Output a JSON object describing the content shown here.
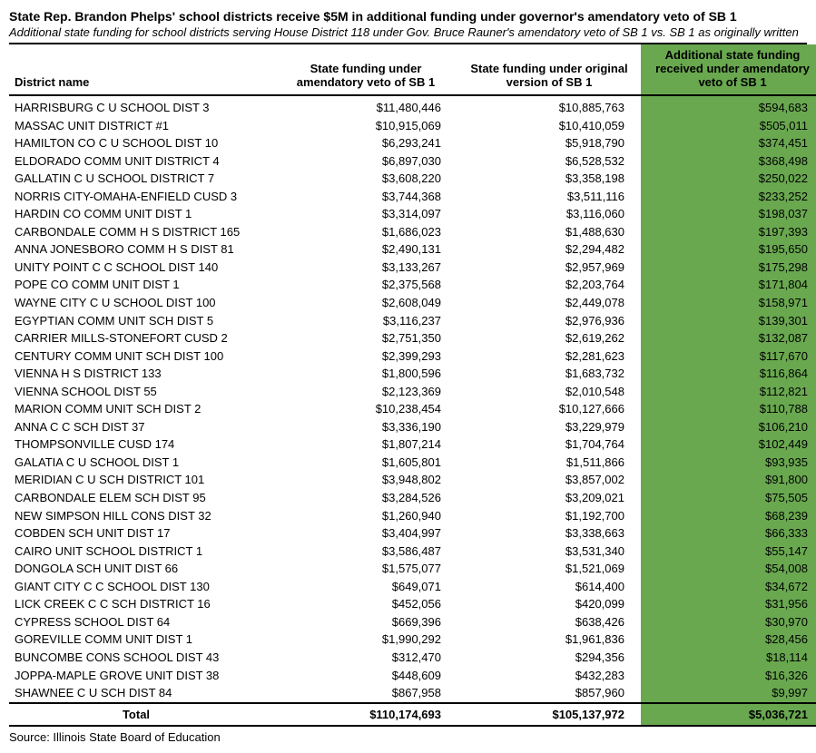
{
  "title": "State Rep. Brandon Phelps' school districts receive $5M in additional funding under governor's amendatory veto of SB 1",
  "subtitle": "Additional state funding for school districts serving House District 118 under Gov. Bruce Rauner's amendatory veto of SB 1 vs. SB 1 as originally written",
  "columns": {
    "c0": "District name",
    "c1": "State funding under amendatory veto of SB 1",
    "c2": "State funding under original version of SB 1",
    "c3": "Additional state funding received under amendatory veto of SB 1"
  },
  "rows": [
    {
      "d": "HARRISBURG C U SCHOOL DIST 3",
      "a": "$11,480,446",
      "b": "$10,885,763",
      "c": "$594,683"
    },
    {
      "d": "MASSAC UNIT DISTRICT #1",
      "a": "$10,915,069",
      "b": "$10,410,059",
      "c": "$505,011"
    },
    {
      "d": "HAMILTON CO C U SCHOOL DIST 10",
      "a": "$6,293,241",
      "b": "$5,918,790",
      "c": "$374,451"
    },
    {
      "d": "ELDORADO COMM UNIT DISTRICT 4",
      "a": "$6,897,030",
      "b": "$6,528,532",
      "c": "$368,498"
    },
    {
      "d": "GALLATIN C U SCHOOL DISTRICT 7",
      "a": "$3,608,220",
      "b": "$3,358,198",
      "c": "$250,022"
    },
    {
      "d": "NORRIS CITY-OMAHA-ENFIELD CUSD 3",
      "a": "$3,744,368",
      "b": "$3,511,116",
      "c": "$233,252"
    },
    {
      "d": "HARDIN CO COMM UNIT DIST 1",
      "a": "$3,314,097",
      "b": "$3,116,060",
      "c": "$198,037"
    },
    {
      "d": "CARBONDALE COMM H S DISTRICT 165",
      "a": "$1,686,023",
      "b": "$1,488,630",
      "c": "$197,393"
    },
    {
      "d": "ANNA JONESBORO COMM H S DIST 81",
      "a": "$2,490,131",
      "b": "$2,294,482",
      "c": "$195,650"
    },
    {
      "d": "UNITY POINT C C SCHOOL DIST 140",
      "a": "$3,133,267",
      "b": "$2,957,969",
      "c": "$175,298"
    },
    {
      "d": "POPE CO COMM UNIT DIST 1",
      "a": "$2,375,568",
      "b": "$2,203,764",
      "c": "$171,804"
    },
    {
      "d": "WAYNE CITY C U SCHOOL DIST 100",
      "a": "$2,608,049",
      "b": "$2,449,078",
      "c": "$158,971"
    },
    {
      "d": "EGYPTIAN COMM UNIT SCH DIST 5",
      "a": "$3,116,237",
      "b": "$2,976,936",
      "c": "$139,301"
    },
    {
      "d": "CARRIER MILLS-STONEFORT CUSD 2",
      "a": "$2,751,350",
      "b": "$2,619,262",
      "c": "$132,087"
    },
    {
      "d": "CENTURY COMM UNIT SCH DIST 100",
      "a": "$2,399,293",
      "b": "$2,281,623",
      "c": "$117,670"
    },
    {
      "d": "VIENNA H S DISTRICT 133",
      "a": "$1,800,596",
      "b": "$1,683,732",
      "c": "$116,864"
    },
    {
      "d": "VIENNA SCHOOL DIST 55",
      "a": "$2,123,369",
      "b": "$2,010,548",
      "c": "$112,821"
    },
    {
      "d": "MARION COMM UNIT SCH DIST 2",
      "a": "$10,238,454",
      "b": "$10,127,666",
      "c": "$110,788"
    },
    {
      "d": "ANNA C C SCH DIST 37",
      "a": "$3,336,190",
      "b": "$3,229,979",
      "c": "$106,210"
    },
    {
      "d": "THOMPSONVILLE CUSD 174",
      "a": "$1,807,214",
      "b": "$1,704,764",
      "c": "$102,449"
    },
    {
      "d": "GALATIA C U SCHOOL DIST 1",
      "a": "$1,605,801",
      "b": "$1,511,866",
      "c": "$93,935"
    },
    {
      "d": "MERIDIAN C U SCH DISTRICT 101",
      "a": "$3,948,802",
      "b": "$3,857,002",
      "c": "$91,800"
    },
    {
      "d": "CARBONDALE ELEM SCH DIST 95",
      "a": "$3,284,526",
      "b": "$3,209,021",
      "c": "$75,505"
    },
    {
      "d": "NEW SIMPSON HILL CONS DIST 32",
      "a": "$1,260,940",
      "b": "$1,192,700",
      "c": "$68,239"
    },
    {
      "d": "COBDEN SCH UNIT DIST 17",
      "a": "$3,404,997",
      "b": "$3,338,663",
      "c": "$66,333"
    },
    {
      "d": "CAIRO UNIT SCHOOL DISTRICT 1",
      "a": "$3,586,487",
      "b": "$3,531,340",
      "c": "$55,147"
    },
    {
      "d": "DONGOLA SCH UNIT DIST 66",
      "a": "$1,575,077",
      "b": "$1,521,069",
      "c": "$54,008"
    },
    {
      "d": "GIANT CITY C C SCHOOL DIST 130",
      "a": "$649,071",
      "b": "$614,400",
      "c": "$34,672"
    },
    {
      "d": "LICK CREEK C C SCH DISTRICT 16",
      "a": "$452,056",
      "b": "$420,099",
      "c": "$31,956"
    },
    {
      "d": "CYPRESS SCHOOL DIST 64",
      "a": "$669,396",
      "b": "$638,426",
      "c": "$30,970"
    },
    {
      "d": "GOREVILLE COMM UNIT DIST 1",
      "a": "$1,990,292",
      "b": "$1,961,836",
      "c": "$28,456"
    },
    {
      "d": "BUNCOMBE CONS SCHOOL DIST 43",
      "a": "$312,470",
      "b": "$294,356",
      "c": "$18,114"
    },
    {
      "d": "JOPPA-MAPLE GROVE UNIT DIST 38",
      "a": "$448,609",
      "b": "$432,283",
      "c": "$16,326"
    },
    {
      "d": "SHAWNEE C U SCH DIST 84",
      "a": "$867,958",
      "b": "$857,960",
      "c": "$9,997"
    }
  ],
  "total": {
    "label": "Total",
    "a": "$110,174,693",
    "b": "$105,137,972",
    "c": "$5,036,721"
  },
  "source": "Source: Illinois State Board of Education",
  "style": {
    "highlight_bg": "#69a84f",
    "border_color": "#000000",
    "font_family": "Arial, Helvetica, sans-serif"
  }
}
